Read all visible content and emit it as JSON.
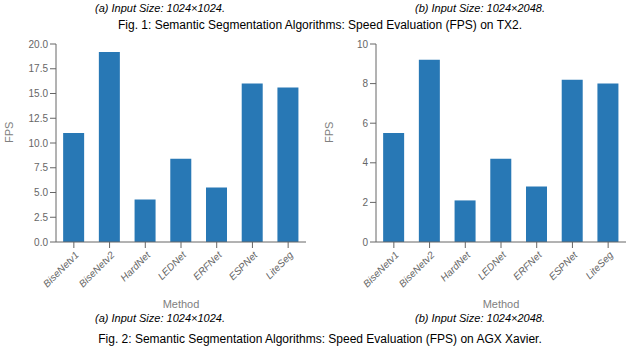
{
  "title": "Fig. 1: Semantic Segmentation Algorithms: Speed Evaluation (FPS) on TX2.",
  "annotations": [
    "Fig. 2: Semantic Segmentation Algorithms: Speed Evaluation (FPS) on AGX Xavier."
  ],
  "chart_data": [
    {
      "type": "bar",
      "subtitle": "(a) Input Size: 1024×1024.",
      "annotations": [
        "(a) Input Size: 1024×1024."
      ],
      "categories": [
        "BiseNetv1",
        "BiseNetv2",
        "HardNet",
        "LEDNet",
        "ERFNet",
        "ESPNet",
        "LiteSeg"
      ],
      "values": [
        11.0,
        19.2,
        4.3,
        8.4,
        5.5,
        16.0,
        15.6
      ],
      "color": "#2878b5",
      "xlabel": "Method",
      "ylabel": "FPS",
      "ylim": [
        0,
        20.0
      ],
      "yticks": [
        {
          "value": 0,
          "label": "0.0"
        },
        2.5,
        {
          "value": 5,
          "label": "5.0"
        },
        7.5,
        {
          "value": 10,
          "label": "10.0"
        },
        12.5,
        {
          "value": 15,
          "label": "15.0"
        },
        17.5,
        {
          "value": 20,
          "label": "20.0"
        }
      ],
      "grid": false
    },
    {
      "type": "bar",
      "subtitle": "(b) Input Size: 1024×2048.",
      "annotations": [
        "(b) Input Size: 1024×2048."
      ],
      "categories": [
        "BiseNetv1",
        "BiseNetv2",
        "HardNet",
        "LEDNet",
        "ERFNet",
        "ESPNet",
        "LiteSeg"
      ],
      "values": [
        5.5,
        9.2,
        2.1,
        4.2,
        2.8,
        8.2,
        8.0
      ],
      "color": "#2878b5",
      "xlabel": "Method",
      "ylabel": "FPS",
      "ylim": [
        0,
        10.0
      ],
      "yticks": [
        0,
        2,
        4,
        6,
        8,
        10
      ],
      "grid": false
    }
  ]
}
